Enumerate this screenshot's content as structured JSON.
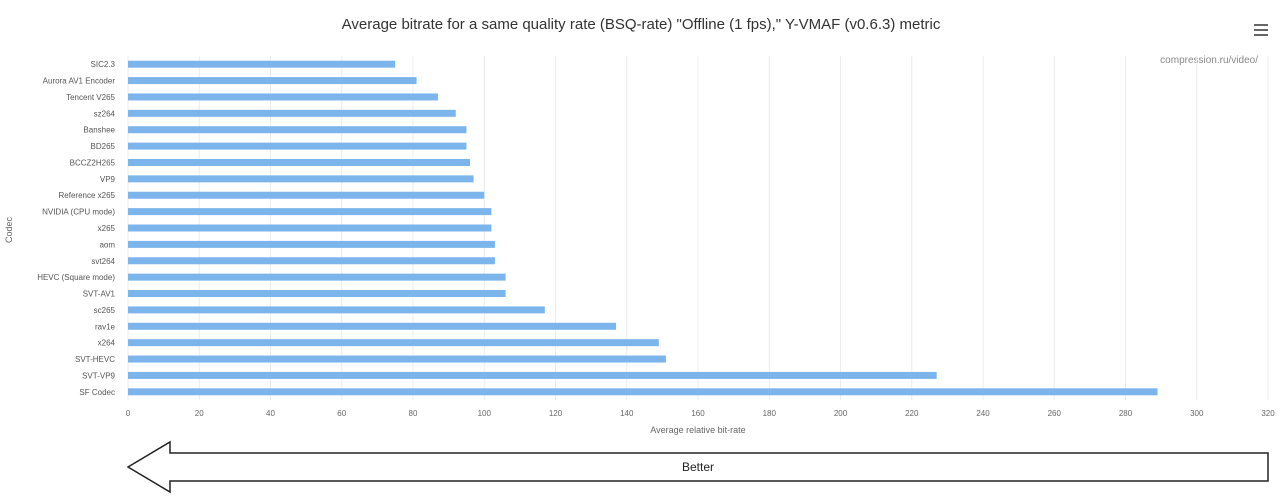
{
  "chart_data": {
    "type": "bar",
    "orientation": "horizontal",
    "title": "Average bitrate for a same quality rate (BSQ-rate) \"Offline (1 fps),\" Y-VMAF (v0.6.3) metric",
    "ylabel": "Codec",
    "xlabel": "Average relative bit-rate",
    "categories": [
      "SIC2.3",
      "Aurora AV1 Encoder",
      "Tencent V265",
      "sz264",
      "Banshee",
      "BD265",
      "BCCZ2H265",
      "VP9",
      "Reference x265",
      "NVIDIA (CPU mode)",
      "x265",
      "aom",
      "svt264",
      "HEVC (Square mode)",
      "SVT-AV1",
      "sc265",
      "rav1e",
      "x264",
      "SVT-HEVC",
      "SVT-VP9",
      "SF Codec"
    ],
    "values": [
      75,
      81,
      87,
      92,
      95,
      95,
      96,
      97,
      100,
      102,
      102,
      103,
      103,
      106,
      106,
      117,
      137,
      149,
      151,
      227,
      289
    ],
    "xlim": [
      0,
      320
    ],
    "xticks": [
      "0",
      "20",
      "40",
      "60",
      "80",
      "100",
      "120",
      "140",
      "160",
      "180",
      "200",
      "220",
      "240",
      "260",
      "280",
      "300",
      "320"
    ],
    "color": "#7cb5ec",
    "grid": true,
    "credit": "compression.ru/video/",
    "annotation": "Better"
  }
}
